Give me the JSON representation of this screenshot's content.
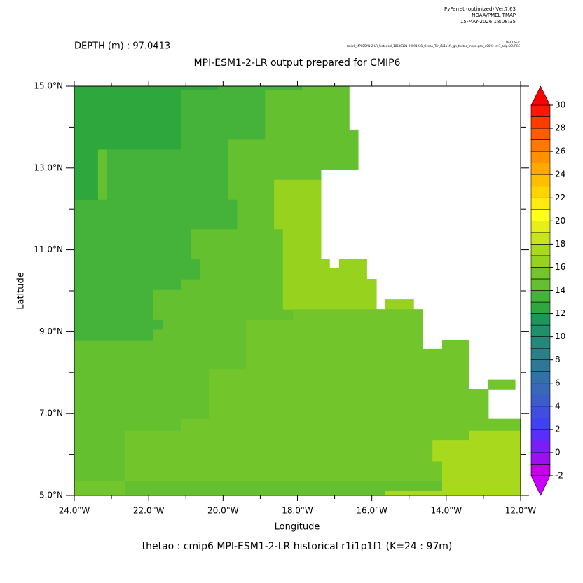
{
  "chart_data": {
    "type": "heatmap",
    "header": [
      "PyFerret (optimized) Ver.7.63",
      "NOAA/PMEL TMAP",
      "15-MAY-2026 18:08:35"
    ],
    "dataset_label": "DATA SET:",
    "dataset": "cmip6_MPI-ESM1-2-LR_historical_18500101-20091231_Ocean_Ter_r1i1p1f1_gn_thetao_mean.gdsl_d0003-lev1_orig.SOURCE",
    "depth_label": "DEPTH (m) : 97.0413",
    "title": "MPI-ESM1-2-LR output prepared for CMIP6",
    "footer": "thetao : cmip6 MPI-ESM1-2-LR historical r1i1p1f1   (K=24 : 97m)",
    "xlabel": "Longitude",
    "ylabel": "Latitude",
    "xlim": [
      -24,
      -12
    ],
    "ylim": [
      5,
      15
    ],
    "xticks": [
      {
        "value": -24,
        "label": "24.0°W"
      },
      {
        "value": -22,
        "label": "22.0°W"
      },
      {
        "value": -20,
        "label": "20.0°W"
      },
      {
        "value": -18,
        "label": "18.0°W"
      },
      {
        "value": -16,
        "label": "16.0°W"
      },
      {
        "value": -14,
        "label": "14.0°W"
      },
      {
        "value": -12,
        "label": "12.0°W"
      }
    ],
    "yticks": [
      {
        "value": 5,
        "label": "5.0°N"
      },
      {
        "value": 7,
        "label": "7.0°N"
      },
      {
        "value": 9,
        "label": "9.0°N"
      },
      {
        "value": 11,
        "label": "11.0°N"
      },
      {
        "value": 13,
        "label": "13.0°N"
      },
      {
        "value": 15,
        "label": "15.0°N"
      }
    ],
    "cells": [
      [
        -24,
        -16.61,
        13.94,
        15
      ],
      [
        -24,
        -16.37,
        12.96,
        13.94
      ],
      [
        -24,
        -17.37,
        10.77,
        12.96
      ],
      [
        -24,
        -17.14,
        10.55,
        10.77
      ],
      [
        -16.88,
        -16.14,
        10.55,
        10.77
      ],
      [
        -24,
        -16.14,
        10.29,
        10.55
      ],
      [
        -24,
        -15.88,
        9.55,
        10.29
      ],
      [
        -15.64,
        -14.88,
        9.55,
        9.79
      ],
      [
        -24,
        -14.64,
        8.58,
        9.55
      ],
      [
        -14.11,
        -13.39,
        8.58,
        8.8
      ],
      [
        -24,
        -13.39,
        7.6,
        8.58
      ],
      [
        -12.87,
        -12.15,
        7.6,
        7.83
      ],
      [
        -24,
        -12.87,
        6.87,
        7.6
      ],
      [
        -24,
        -12,
        5,
        6.87
      ],
      [
        -20.14,
        -17.88,
        14.91,
        15
      ],
      [
        -21.14,
        -18.88,
        13.7,
        14.91
      ],
      [
        -23.13,
        -19.87,
        12.23,
        13.7
      ],
      [
        -24,
        -19.63,
        11.51,
        12.23
      ],
      [
        -24,
        -20.87,
        10.77,
        11.51
      ],
      [
        -24,
        -20.63,
        10.29,
        10.77
      ],
      [
        -24,
        -21.14,
        10.03,
        10.29
      ],
      [
        -24,
        -21.89,
        8.8,
        10.03
      ],
      [
        -21.89,
        -21.63,
        9.06,
        9.3
      ],
      [
        -24,
        -21.14,
        13.46,
        15
      ],
      [
        -24,
        -20.14,
        14.91,
        15
      ],
      [
        -24,
        -23.37,
        12.23,
        13.46
      ],
      [
        -18.63,
        -17.37,
        11.51,
        12.71
      ],
      [
        -18.39,
        -17.37,
        10.77,
        11.51
      ],
      [
        -18.39,
        -17.14,
        10.55,
        10.77
      ],
      [
        -16.88,
        -16.14,
        10.55,
        10.77
      ],
      [
        -18.39,
        -16.14,
        10.29,
        10.55
      ],
      [
        -18.39,
        -15.88,
        9.55,
        10.29
      ],
      [
        -15.64,
        -14.88,
        9.55,
        9.79
      ],
      [
        -18.12,
        -14.64,
        9.3,
        9.55
      ],
      [
        -19.38,
        -14.64,
        8.58,
        9.3
      ],
      [
        -14.11,
        -13.39,
        8.58,
        8.8
      ],
      [
        -19.38,
        -13.39,
        8.08,
        8.58
      ],
      [
        -20.38,
        -13.39,
        7.6,
        8.08
      ],
      [
        -12.87,
        -12.15,
        7.6,
        7.83
      ],
      [
        -20.38,
        -12.87,
        6.87,
        7.6
      ],
      [
        -21.14,
        -12,
        6.58,
        6.87
      ],
      [
        -22.64,
        -12,
        5.36,
        6.58
      ],
      [
        -24,
        -22.64,
        5,
        5.36
      ],
      [
        -13.39,
        -12,
        6.35,
        6.58
      ],
      [
        -14.37,
        -12,
        5.84,
        6.35
      ],
      [
        -14.11,
        -12,
        5.12,
        5.84
      ],
      [
        -15.64,
        -12,
        5,
        5.12
      ]
    ],
    "values": [
      14.5,
      14.5,
      14.5,
      14.5,
      14.5,
      14.5,
      14.5,
      14.5,
      14.5,
      14.5,
      14.5,
      14.5,
      14.5,
      14.5,
      13.5,
      13.5,
      13.5,
      13.5,
      13.5,
      13.5,
      13.5,
      13.5,
      13.5,
      12.5,
      12.5,
      12.5,
      16.5,
      16.5,
      16.5,
      16.5,
      16.5,
      16.5,
      16.5,
      15.5,
      15.5,
      15.5,
      15.5,
      15.5,
      15.5,
      15.5,
      15.5,
      15.5,
      15.5,
      17.5,
      17.5,
      17.5,
      17.5
    ],
    "clim": [
      -2,
      30
    ],
    "cticks": [
      -2,
      0,
      2,
      4,
      6,
      8,
      10,
      12,
      14,
      16,
      18,
      20,
      22,
      24,
      26,
      28,
      30
    ],
    "colors": [
      "#c400e6",
      "#9b0ff0",
      "#7a1ef5",
      "#5a2dfa",
      "#4040f5",
      "#3e4fe0",
      "#3c5ccc",
      "#3868b8",
      "#3470a8",
      "#2e7896",
      "#2a8088",
      "#24887a",
      "#1e906a",
      "#1a985a",
      "#2ea83c",
      "#45b33a",
      "#64c02e",
      "#72c52a",
      "#96d21e",
      "#a8d91c",
      "#c8e41a",
      "#e4f018",
      "#ffff1a",
      "#ffeb10",
      "#ffd400",
      "#ffbf00",
      "#ffa800",
      "#ff9000",
      "#ff7800",
      "#ff5c00",
      "#ff3c00",
      "#ff1800"
    ],
    "under_color": "#cc00ff",
    "over_color": "#ff0000"
  }
}
